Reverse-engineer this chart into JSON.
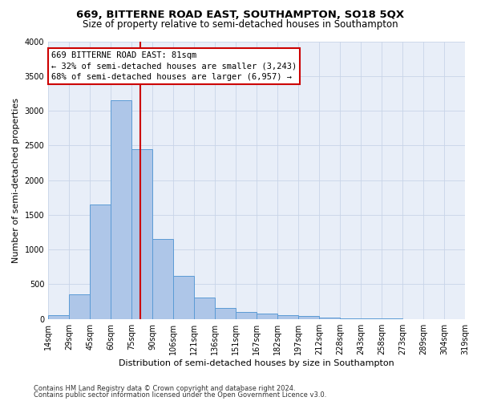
{
  "title_line1": "669, BITTERNE ROAD EAST, SOUTHAMPTON, SO18 5QX",
  "title_line2": "Size of property relative to semi-detached houses in Southampton",
  "xlabel": "Distribution of semi-detached houses by size in Southampton",
  "ylabel": "Number of semi-detached properties",
  "footer_line1": "Contains HM Land Registry data © Crown copyright and database right 2024.",
  "footer_line2": "Contains public sector information licensed under the Open Government Licence v3.0.",
  "annotation_title": "669 BITTERNE ROAD EAST: 81sqm",
  "annotation_line1": "← 32% of semi-detached houses are smaller (3,243)",
  "annotation_line2": "68% of semi-detached houses are larger (6,957) →",
  "bin_labels": [
    "14sqm",
    "29sqm",
    "45sqm",
    "60sqm",
    "75sqm",
    "90sqm",
    "106sqm",
    "121sqm",
    "136sqm",
    "151sqm",
    "167sqm",
    "182sqm",
    "197sqm",
    "212sqm",
    "228sqm",
    "243sqm",
    "258sqm",
    "273sqm",
    "289sqm",
    "304sqm",
    "319sqm"
  ],
  "bar_heights": [
    50,
    350,
    1650,
    3150,
    2450,
    1150,
    620,
    310,
    160,
    100,
    75,
    60,
    40,
    20,
    10,
    5,
    3,
    2,
    1,
    1
  ],
  "bar_color": "#aec6e8",
  "bar_edge_color": "#5b9bd5",
  "property_bin_index": 4,
  "vline_color": "#cc0000",
  "annotation_box_color": "#cc0000",
  "ylim": [
    0,
    4000
  ],
  "yticks": [
    0,
    500,
    1000,
    1500,
    2000,
    2500,
    3000,
    3500,
    4000
  ],
  "background_color": "#ffffff",
  "plot_bg_color": "#e8eef8",
  "grid_color": "#c8d4e8",
  "title_fontsize": 9.5,
  "subtitle_fontsize": 8.5,
  "axis_label_fontsize": 8.0,
  "tick_fontsize": 7.0,
  "annotation_fontsize": 7.5,
  "footer_fontsize": 6.0
}
